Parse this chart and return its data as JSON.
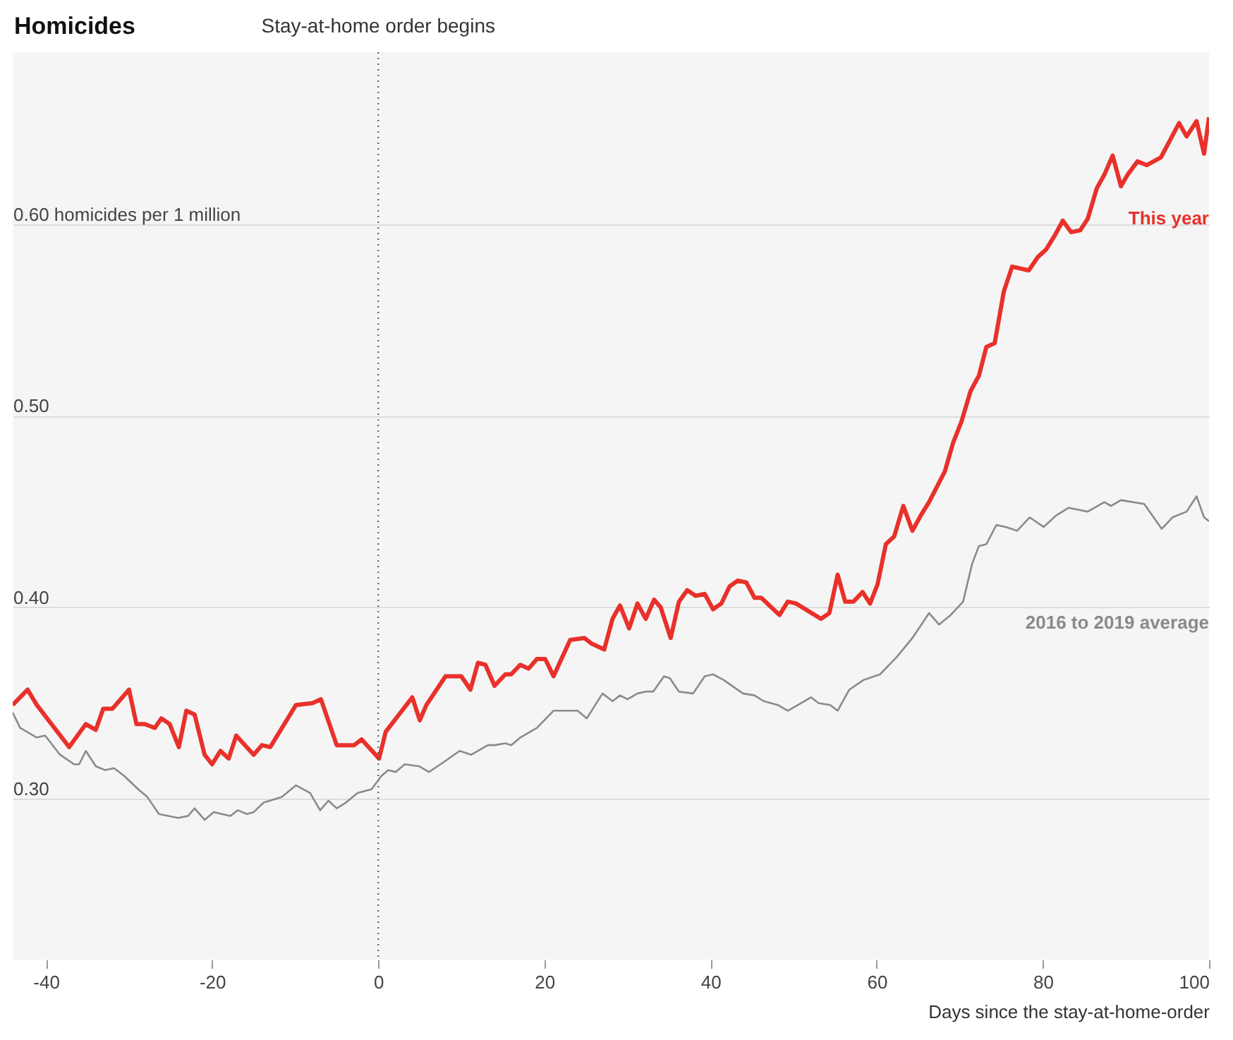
{
  "chart_data": {
    "type": "line",
    "title": "Homicides",
    "xlabel": "Days since the stay-at-home-order",
    "xlim": [
      -44,
      100
    ],
    "xticks": [
      -40,
      -20,
      0,
      20,
      40,
      60,
      80,
      100
    ],
    "ylim": [
      0.216,
      0.69
    ],
    "yticks": [
      {
        "value": 0.3,
        "label": "0.30"
      },
      {
        "value": 0.4,
        "label": "0.40"
      },
      {
        "value": 0.5,
        "label": "0.50"
      },
      {
        "value": 0.6,
        "label": "0.60 homicides per 1 million"
      }
    ],
    "grid": "y",
    "legend": false,
    "ref_lines": [
      {
        "axis": "x",
        "value": 0,
        "label": "Stay-at-home order begins",
        "line_style": "dotted",
        "color": "#555555"
      }
    ],
    "series": [
      {
        "name": "This year",
        "color": "#e8312a",
        "x": [
          -44,
          -42.2,
          -41.1,
          -37.2,
          -35.2,
          -34.0,
          -33.1,
          -32.0,
          -30.0,
          -29.1,
          -28.1,
          -26.9,
          -26.1,
          -25.1,
          -24.0,
          -23.1,
          -22.1,
          -20.9,
          -20.0,
          -19.0,
          -18.0,
          -17.1,
          -15.0,
          -14.0,
          -13.0,
          -9.9,
          -7.9,
          -6.9,
          -5.0,
          -2.9,
          -2.0,
          0.1,
          0.9,
          4.1,
          5.0,
          5.8,
          8.1,
          10.0,
          11.1,
          12.0,
          12.9,
          14.0,
          15.3,
          16.0,
          17.1,
          18.1,
          19.1,
          20.1,
          21.1,
          23.1,
          24.8,
          25.7,
          27.2,
          28.2,
          29.1,
          30.2,
          31.2,
          32.2,
          33.2,
          34.0,
          35.2,
          36.2,
          37.2,
          38.2,
          39.3,
          40.3,
          41.3,
          42.3,
          43.3,
          44.3,
          45.3,
          46.1,
          48.3,
          49.3,
          50.3,
          53.3,
          54.3,
          55.3,
          56.2,
          57.2,
          58.3,
          59.2,
          60.1,
          61.1,
          62.1,
          63.2,
          64.3,
          65.3,
          66.3,
          68.2,
          69.2,
          70.2,
          71.3,
          72.3,
          73.2,
          74.2,
          75.3,
          76.3,
          78.3,
          79.4,
          80.4,
          81.4,
          82.4,
          83.4,
          84.5,
          85.4,
          86.5,
          87.4,
          88.4,
          89.4,
          90.2,
          91.4,
          92.5,
          94.2,
          95.3,
          96.4,
          97.3,
          98.5,
          99.4,
          100
        ],
        "values": [
          0.349,
          0.357,
          0.349,
          0.327,
          0.339,
          0.336,
          0.347,
          0.347,
          0.357,
          0.339,
          0.339,
          0.337,
          0.342,
          0.339,
          0.327,
          0.346,
          0.344,
          0.323,
          0.318,
          0.325,
          0.321,
          0.333,
          0.323,
          0.328,
          0.327,
          0.349,
          0.35,
          0.352,
          0.328,
          0.328,
          0.331,
          0.321,
          0.335,
          0.353,
          0.341,
          0.349,
          0.364,
          0.364,
          0.357,
          0.371,
          0.37,
          0.359,
          0.365,
          0.365,
          0.37,
          0.368,
          0.373,
          0.373,
          0.364,
          0.383,
          0.384,
          0.381,
          0.378,
          0.394,
          0.401,
          0.389,
          0.402,
          0.394,
          0.404,
          0.4,
          0.384,
          0.403,
          0.409,
          0.406,
          0.407,
          0.399,
          0.402,
          0.411,
          0.414,
          0.413,
          0.405,
          0.405,
          0.396,
          0.403,
          0.402,
          0.394,
          0.397,
          0.417,
          0.403,
          0.403,
          0.408,
          0.402,
          0.412,
          0.433,
          0.437,
          0.453,
          0.44,
          0.448,
          0.455,
          0.471,
          0.486,
          0.497,
          0.513,
          0.521,
          0.536,
          0.538,
          0.565,
          0.578,
          0.576,
          0.583,
          0.587,
          0.594,
          0.602,
          0.596,
          0.597,
          0.603,
          0.619,
          0.626,
          0.636,
          0.62,
          0.626,
          0.633,
          0.631,
          0.635,
          0.644,
          0.653,
          0.646,
          0.654,
          0.637,
          0.656
        ]
      },
      {
        "name": "2016 to 2019 average",
        "color": "#8a8a8a",
        "x": [
          -44,
          -43.1,
          -41.1,
          -40.1,
          -38.3,
          -36.6,
          -36.0,
          -35.2,
          -34.0,
          -32.9,
          -31.8,
          -30.6,
          -28.9,
          -27.8,
          -26.4,
          -24.1,
          -22.9,
          -22.1,
          -20.9,
          -19.8,
          -17.8,
          -16.9,
          -15.8,
          -15.0,
          -13.8,
          -11.6,
          -9.9,
          -8.2,
          -7.0,
          -6.0,
          -5.0,
          -3.9,
          -2.5,
          -0.8,
          0.4,
          1.2,
          2.1,
          3.2,
          4.9,
          6.1,
          7.5,
          9.8,
          11.2,
          13.2,
          14.0,
          15.3,
          16.0,
          17.1,
          19.1,
          21.1,
          24.0,
          25.1,
          27.0,
          28.2,
          29.1,
          30.0,
          31.2,
          32.2,
          33.1,
          34.4,
          35.1,
          36.2,
          37.9,
          39.3,
          40.3,
          41.6,
          43.9,
          45.3,
          46.4,
          48.1,
          49.3,
          52.1,
          53.0,
          54.4,
          55.3,
          56.7,
          58.4,
          60.4,
          62.4,
          64.3,
          66.3,
          67.5,
          68.9,
          70.4,
          71.5,
          72.3,
          73.2,
          74.4,
          75.5,
          76.9,
          78.4,
          80.1,
          81.6,
          83.1,
          85.4,
          87.4,
          88.2,
          89.4,
          92.2,
          94.3,
          95.6,
          97.3,
          98.5,
          99.4,
          100
        ],
        "values": [
          0.345,
          0.337,
          0.332,
          0.333,
          0.323,
          0.318,
          0.318,
          0.325,
          0.317,
          0.315,
          0.316,
          0.312,
          0.305,
          0.301,
          0.292,
          0.29,
          0.291,
          0.295,
          0.289,
          0.293,
          0.291,
          0.294,
          0.292,
          0.293,
          0.298,
          0.301,
          0.307,
          0.303,
          0.294,
          0.299,
          0.295,
          0.298,
          0.303,
          0.305,
          0.312,
          0.315,
          0.314,
          0.318,
          0.317,
          0.314,
          0.318,
          0.325,
          0.323,
          0.328,
          0.328,
          0.329,
          0.328,
          0.332,
          0.337,
          0.346,
          0.346,
          0.342,
          0.355,
          0.351,
          0.354,
          0.352,
          0.355,
          0.356,
          0.356,
          0.364,
          0.363,
          0.356,
          0.355,
          0.364,
          0.365,
          0.362,
          0.355,
          0.354,
          0.351,
          0.349,
          0.346,
          0.353,
          0.35,
          0.349,
          0.346,
          0.357,
          0.362,
          0.365,
          0.374,
          0.384,
          0.397,
          0.391,
          0.396,
          0.403,
          0.423,
          0.432,
          0.433,
          0.443,
          0.442,
          0.44,
          0.447,
          0.442,
          0.448,
          0.452,
          0.45,
          0.455,
          0.453,
          0.456,
          0.454,
          0.441,
          0.447,
          0.45,
          0.458,
          0.447,
          0.445
        ]
      }
    ]
  }
}
